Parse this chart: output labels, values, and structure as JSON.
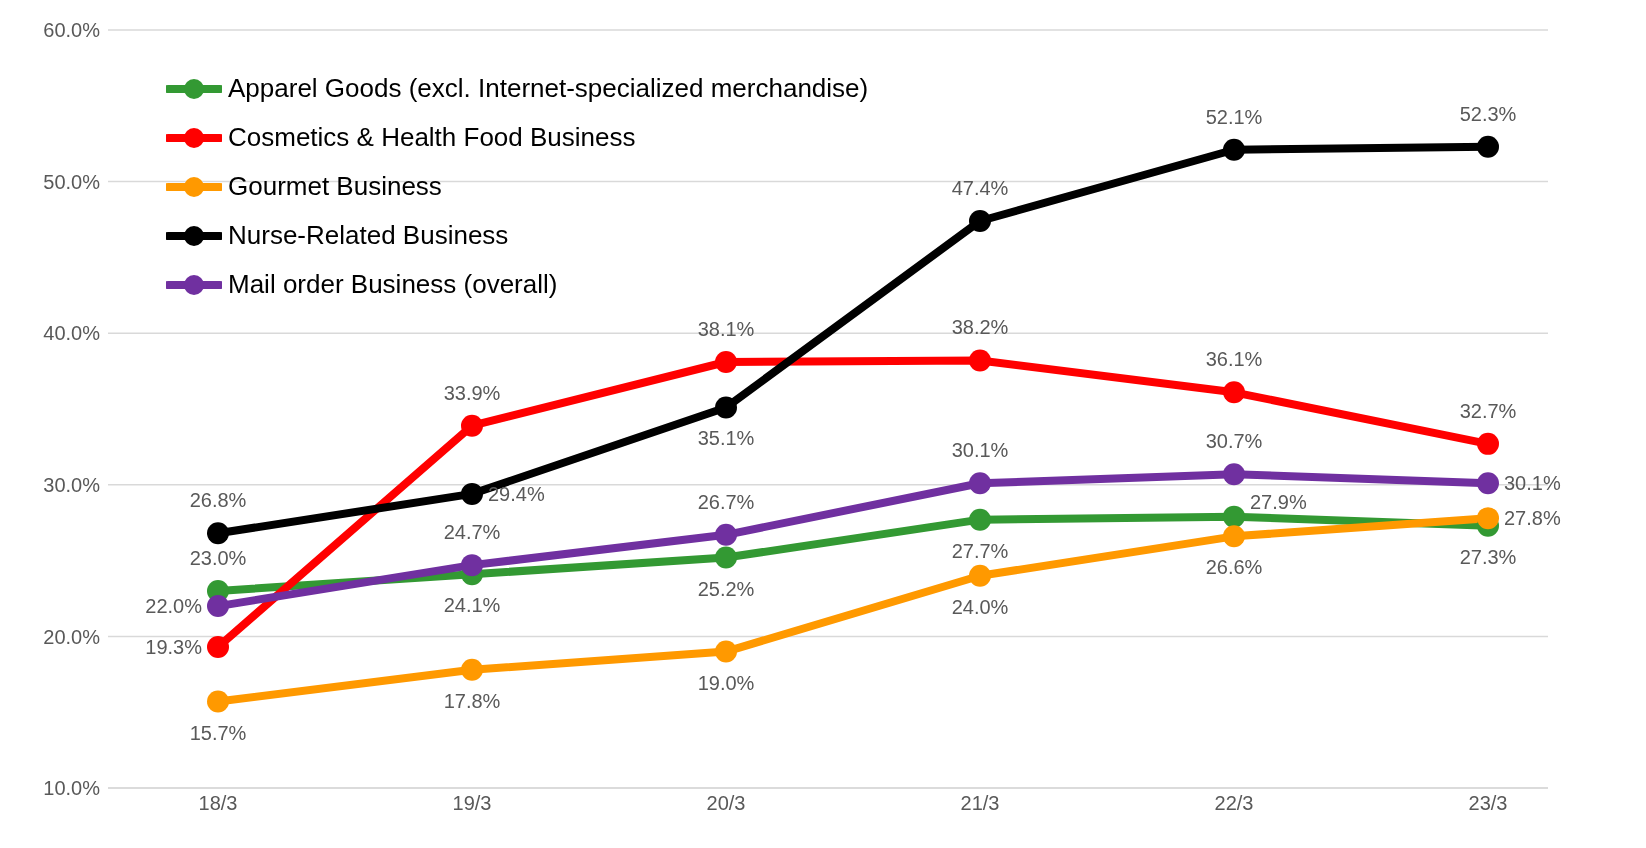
{
  "chart_data": {
    "type": "line",
    "categories": [
      "18/3",
      "19/3",
      "20/3",
      "21/3",
      "22/3",
      "23/3"
    ],
    "series": [
      {
        "name": "Apparel Goods (excl. Internet-specialized merchandise)",
        "color": "#339933",
        "values": [
          23.0,
          24.1,
          25.2,
          27.7,
          27.9,
          27.3
        ],
        "value_labels": [
          "23.0%",
          "24.1%",
          "25.2%",
          "27.7%",
          "27.9%",
          "27.3%"
        ]
      },
      {
        "name": "Cosmetics & Health Food Business",
        "color": "#ff0000",
        "values": [
          19.3,
          33.9,
          38.1,
          38.2,
          36.1,
          32.7
        ],
        "value_labels": [
          "19.3%",
          "33.9%",
          "38.1%",
          "38.2%",
          "36.1%",
          "32.7%"
        ]
      },
      {
        "name": "Gourmet Business",
        "color": "#ff9900",
        "values": [
          15.7,
          17.8,
          19.0,
          24.0,
          26.6,
          27.8
        ],
        "value_labels": [
          "15.7%",
          "17.8%",
          "19.0%",
          "24.0%",
          "26.6%",
          "27.8%"
        ]
      },
      {
        "name": "Nurse-Related Business",
        "color": "#000000",
        "values": [
          26.8,
          29.4,
          35.1,
          47.4,
          52.1,
          52.3
        ],
        "value_labels": [
          "26.8%",
          "29.4%",
          "35.1%",
          "47.4%",
          "52.1%",
          "52.3%"
        ]
      },
      {
        "name": "Mail order Business (overall)",
        "color": "#7030a0",
        "values": [
          22.0,
          24.7,
          26.7,
          30.1,
          30.7,
          30.1
        ],
        "value_labels": [
          "22.0%",
          "24.7%",
          "26.7%",
          "30.1%",
          "30.7%",
          "30.1%"
        ]
      }
    ],
    "ylim": [
      10,
      60
    ],
    "yticks": [
      {
        "value": 10,
        "label": "10.0%"
      },
      {
        "value": 20,
        "label": "20.0%"
      },
      {
        "value": 30,
        "label": "30.0%"
      },
      {
        "value": 40,
        "label": "40.0%"
      },
      {
        "value": 50,
        "label": "50.0%"
      },
      {
        "value": 60,
        "label": "60.0%"
      }
    ],
    "grid": "y",
    "legend": "top left",
    "marker": "circle",
    "line_style": "solid"
  }
}
